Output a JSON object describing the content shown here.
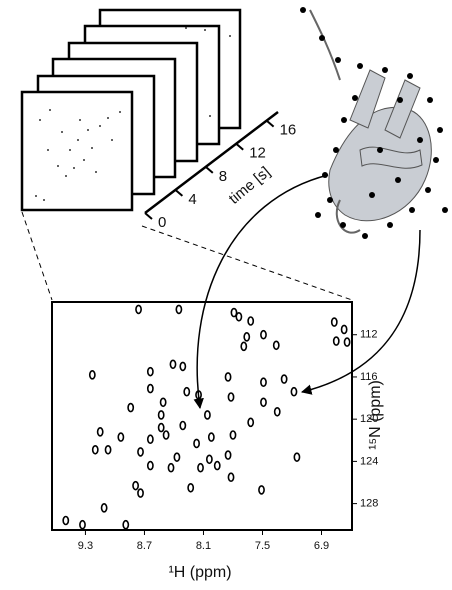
{
  "chart_data": {
    "type": "scatter",
    "x_label": "¹H (ppm)",
    "y_label": "¹⁵N (ppm)",
    "xlim": [
      9.64,
      6.59
    ],
    "ylim": [
      130.5,
      108.9
    ],
    "xticks": [
      9.3,
      8.7,
      8.1,
      7.5,
      6.9
    ],
    "yticks": [
      112,
      116,
      120,
      124,
      128
    ],
    "color": "#000000",
    "x": [
      8.76,
      8.35,
      7.79,
      7.74,
      7.62,
      6.77,
      6.67,
      6.64,
      6.75,
      7.66,
      7.49,
      7.36,
      7.69,
      8.41,
      8.31,
      8.64,
      9.23,
      7.85,
      7.49,
      7.28,
      8.64,
      7.18,
      8.27,
      8.15,
      7.82,
      7.49,
      8.51,
      8.84,
      8.53,
      8.06,
      7.35,
      7.62,
      8.31,
      8.53,
      8.48,
      9.15,
      8.94,
      8.64,
      8.02,
      7.8,
      8.17,
      9.07,
      9.2,
      8.74,
      8.37,
      8.04,
      7.96,
      7.15,
      8.64,
      8.43,
      8.79,
      8.74,
      8.23,
      7.82,
      7.51,
      9.11,
      9.5,
      9.33,
      8.89,
      7.85,
      8.13
    ],
    "values": [
      109.6,
      109.6,
      109.9,
      110.3,
      110.7,
      110.8,
      111.5,
      112.7,
      112.6,
      112.2,
      112.0,
      113.0,
      113.1,
      114.8,
      115.0,
      115.5,
      115.8,
      116.0,
      116.5,
      116.2,
      117.1,
      117.4,
      117.4,
      117.7,
      117.9,
      118.4,
      118.4,
      118.9,
      119.6,
      119.6,
      119.3,
      120.3,
      120.6,
      120.8,
      121.5,
      121.2,
      121.7,
      121.9,
      121.7,
      121.5,
      122.3,
      122.9,
      122.9,
      123.1,
      123.6,
      123.8,
      124.4,
      123.6,
      124.4,
      124.6,
      126.3,
      127.0,
      126.5,
      125.5,
      126.7,
      128.4,
      129.6,
      130.0,
      130.0,
      123.4,
      124.6
    ]
  },
  "time_axis": {
    "label": "time [s]",
    "xlim": [
      0,
      17.5
    ],
    "xticks": [
      0,
      4,
      8,
      12,
      16
    ]
  }
}
